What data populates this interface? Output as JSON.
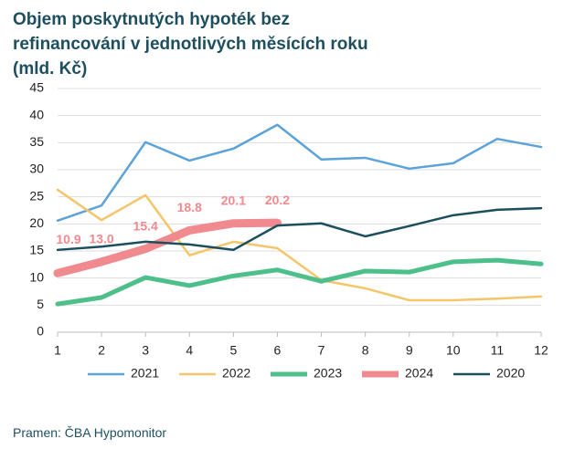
{
  "chart_data": {
    "type": "line",
    "title": "Objem poskytnutých hypoték bez refinancování v jednotlivých měsících roku (mld. Kč)",
    "source": "Pramen: ČBA Hypomonitor",
    "x": [
      1,
      2,
      3,
      4,
      5,
      6,
      7,
      8,
      9,
      10,
      11,
      12
    ],
    "xlim": [
      1,
      12
    ],
    "xticks": [
      1,
      2,
      3,
      4,
      5,
      6,
      7,
      8,
      9,
      10,
      11,
      12
    ],
    "ylim": [
      0,
      45
    ],
    "yticks": [
      0,
      5,
      10,
      15,
      20,
      25,
      30,
      35,
      40,
      45
    ],
    "grid": true,
    "legend": "bottom",
    "series": [
      {
        "name": "2021",
        "color": "#5ba3d9",
        "values": [
          20.6,
          23.4,
          35.1,
          31.7,
          33.9,
          38.3,
          31.9,
          32.2,
          30.2,
          31.2,
          35.7,
          34.2
        ]
      },
      {
        "name": "2022",
        "color": "#f5c56a",
        "values": [
          26.3,
          20.7,
          25.3,
          14.2,
          16.7,
          15.5,
          9.6,
          8.1,
          5.9,
          5.9,
          6.2,
          6.6
        ]
      },
      {
        "name": "2023",
        "color": "#4dbf8a",
        "values": [
          5.2,
          6.4,
          10.1,
          8.6,
          10.4,
          11.5,
          9.4,
          11.3,
          11.1,
          13.0,
          13.3,
          12.6
        ]
      },
      {
        "name": "2024",
        "color": "#f08a8f",
        "values": [
          10.9,
          13.0,
          15.4,
          18.8,
          20.1,
          20.2,
          null,
          null,
          null,
          null,
          null,
          null
        ],
        "value_labels": [
          "10.9",
          "13.0",
          "15.4",
          "18.8",
          "20.1",
          "20.2",
          null,
          null,
          null,
          null,
          null,
          null
        ]
      },
      {
        "name": "2020",
        "color": "#1b4f5e",
        "values": [
          15.2,
          15.8,
          16.7,
          16.2,
          15.2,
          19.7,
          20.1,
          17.7,
          19.6,
          21.6,
          22.6,
          22.9
        ]
      }
    ]
  }
}
